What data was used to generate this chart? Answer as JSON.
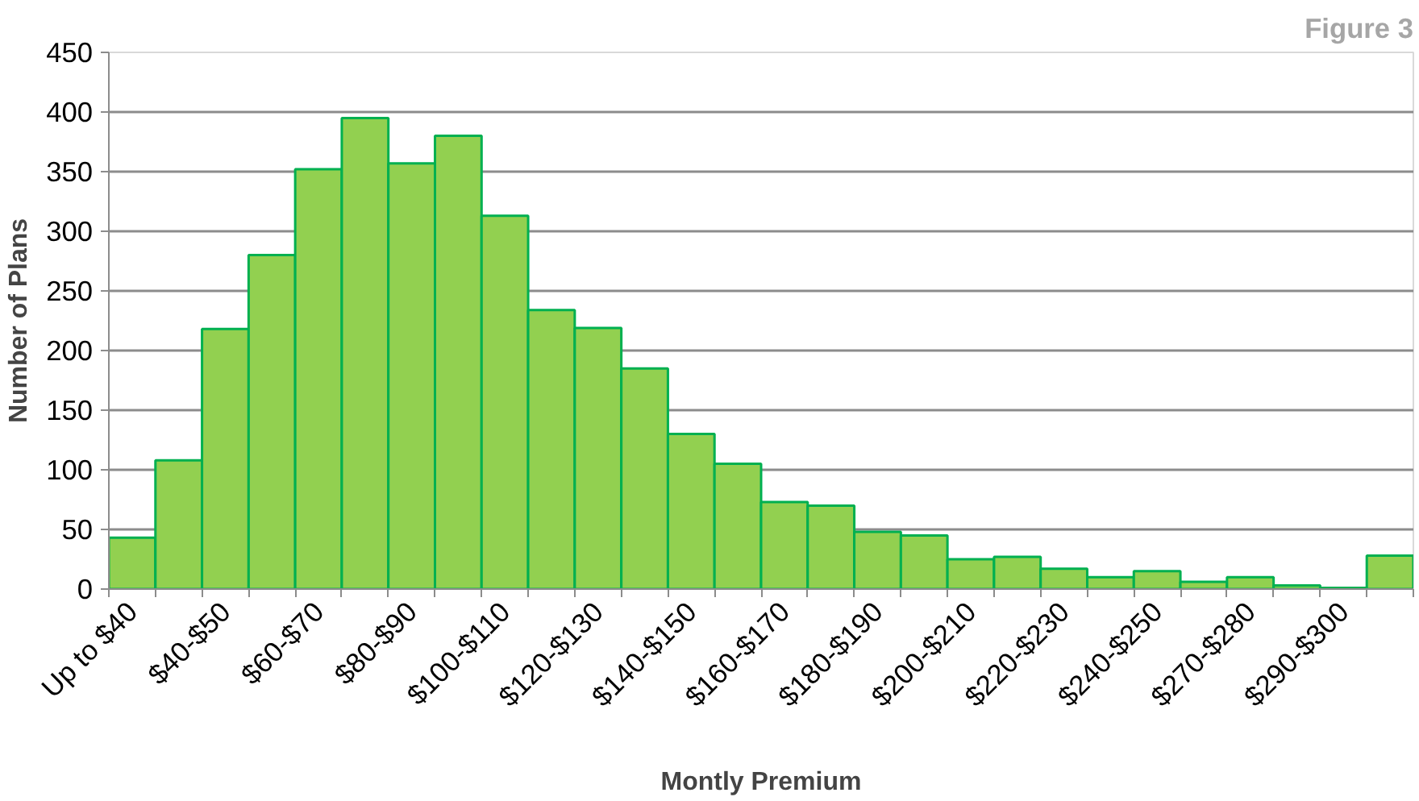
{
  "chart_data": {
    "type": "bar",
    "title": "Figure 3",
    "xlabel": "Montly Premium",
    "ylabel": "Number of Plans",
    "categories": [
      "Up to $40",
      null,
      "$40-$50",
      null,
      "$60-$70",
      null,
      "$80-$90",
      null,
      "$100-$110",
      null,
      "$120-$130",
      null,
      "$140-$150",
      null,
      "$160-$170",
      null,
      "$180-$190",
      null,
      "$200-$210",
      null,
      "$220-$230",
      null,
      "$240-$250",
      null,
      "$270-$280",
      null,
      "$290-$300",
      null
    ],
    "values": [
      43,
      108,
      218,
      280,
      352,
      395,
      357,
      380,
      313,
      234,
      219,
      185,
      130,
      105,
      73,
      70,
      48,
      45,
      25,
      27,
      17,
      10,
      15,
      6,
      10,
      3,
      1,
      28
    ],
    "color": "#92d050",
    "ylim": [
      0,
      450
    ],
    "yticks": [
      0,
      50,
      100,
      150,
      200,
      250,
      300,
      350,
      400,
      450
    ],
    "grid": "y"
  }
}
